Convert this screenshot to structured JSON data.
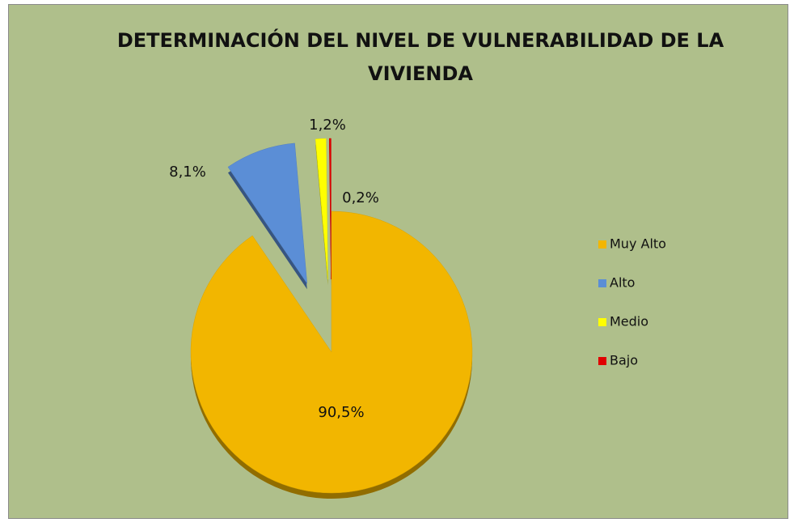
{
  "chart_data": {
    "type": "pie",
    "title": "DETERMINACIÓN DEL NIVEL DE VULNERABILIDAD DE LA VIVIENDA",
    "categories": [
      "Muy Alto",
      "Alto",
      "Medio",
      "Bajo"
    ],
    "values": [
      90.5,
      8.1,
      1.2,
      0.2
    ],
    "value_labels": [
      "90,5%",
      "8,1%",
      "1,2%",
      "0,2%"
    ],
    "colors": [
      "#f2b600",
      "#5b8ed6",
      "#ffff00",
      "#e00000"
    ],
    "legend": "right"
  }
}
